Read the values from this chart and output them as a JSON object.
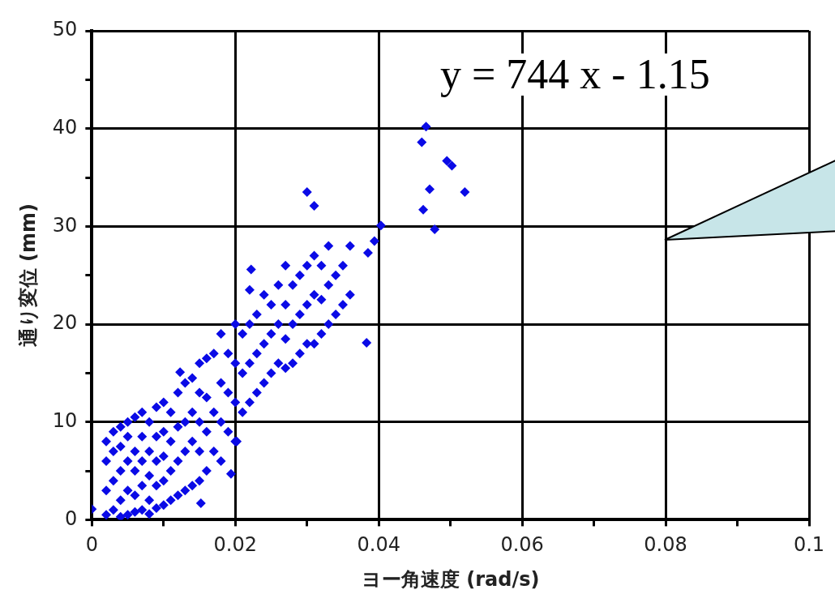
{
  "chart_data": {
    "type": "scatter",
    "xlabel": "ヨー角速度 (rad/s)",
    "ylabel": "通り変位 (mm)",
    "annotations": [
      "y = 744 x - 1.15"
    ],
    "xlim": [
      0,
      0.1
    ],
    "ylim": [
      0,
      50
    ],
    "xticks": [
      0,
      {
        "value": 0.01,
        "label": null
      },
      0.02,
      {
        "value": 0.03,
        "label": null
      },
      0.04,
      {
        "value": 0.05,
        "label": null
      },
      0.06,
      {
        "value": 0.07,
        "label": null
      },
      0.08,
      {
        "value": 0.09,
        "label": null
      },
      0.1
    ],
    "yticks": [
      0,
      {
        "value": 5,
        "label": null
      },
      10,
      {
        "value": 15,
        "label": null
      },
      20,
      {
        "value": 25,
        "label": null
      },
      30,
      {
        "value": 35,
        "label": null
      },
      40,
      {
        "value": 45,
        "label": null
      },
      50
    ],
    "grid": true,
    "legend": false,
    "marker": "diamond",
    "series": [
      {
        "color": "#0a0ae6",
        "x": [
          0,
          0.002,
          0.002,
          0.002,
          0.002,
          0.003,
          0.003,
          0.003,
          0.003,
          0.004,
          0.004,
          0.004,
          0.004,
          0.004,
          0.005,
          0.005,
          0.005,
          0.005,
          0.005,
          0.006,
          0.006,
          0.006,
          0.006,
          0.006,
          0.007,
          0.007,
          0.007,
          0.007,
          0.007,
          0.008,
          0.008,
          0.008,
          0.008,
          0.008,
          0.009,
          0.009,
          0.009,
          0.009,
          0.009,
          0.01,
          0.01,
          0.01,
          0.01,
          0.01,
          0.011,
          0.011,
          0.011,
          0.011,
          0.012,
          0.012,
          0.012,
          0.012,
          0.013,
          0.013,
          0.013,
          0.013,
          0.014,
          0.014,
          0.014,
          0.014,
          0.015,
          0.015,
          0.015,
          0.015,
          0.015,
          0.016,
          0.016,
          0.016,
          0.016,
          0.017,
          0.017,
          0.017,
          0.018,
          0.018,
          0.018,
          0.018,
          0.019,
          0.019,
          0.019,
          0.02,
          0.02,
          0.02,
          0.02,
          0.021,
          0.021,
          0.021,
          0.022,
          0.022,
          0.022,
          0.022,
          0.023,
          0.023,
          0.023,
          0.024,
          0.024,
          0.024,
          0.025,
          0.025,
          0.025,
          0.026,
          0.026,
          0.026,
          0.027,
          0.027,
          0.027,
          0.027,
          0.028,
          0.028,
          0.028,
          0.029,
          0.029,
          0.029,
          0.03,
          0.03,
          0.03,
          0.031,
          0.031,
          0.031,
          0.032,
          0.032,
          0.032,
          0.033,
          0.033,
          0.033,
          0.034,
          0.034,
          0.035,
          0.035,
          0.036,
          0.036,
          0.03,
          0.031,
          0.0385,
          0.0394,
          0.0403,
          0.0383,
          0.046,
          0.0466,
          0.0495,
          0.0502,
          0.0471,
          0.052,
          0.0462,
          0.0478,
          0.0222,
          0.0123,
          0.0152,
          0.0194,
          0.0202
        ],
        "values": [
          1.1,
          0.5,
          3,
          6,
          8,
          1,
          4,
          7,
          9,
          0.3,
          2,
          5,
          7.5,
          9.5,
          0.5,
          3,
          6,
          8.5,
          10,
          0.8,
          2.5,
          5,
          7,
          10.5,
          1,
          3.5,
          6,
          8.5,
          11,
          0.6,
          2,
          4.5,
          7,
          10,
          1.2,
          3.5,
          6,
          8.5,
          11.5,
          1.5,
          4,
          6.5,
          9,
          12,
          2,
          5,
          8,
          11,
          2.5,
          6,
          9.5,
          13,
          3,
          7,
          10,
          14,
          3.5,
          8,
          11,
          14.5,
          4,
          7,
          10,
          13,
          16,
          5,
          9,
          12.5,
          16.5,
          7,
          11,
          17,
          6,
          10,
          14,
          19,
          9,
          13,
          17,
          8,
          12,
          16,
          20,
          11,
          15,
          19,
          12,
          16,
          20,
          23.5,
          13,
          17,
          21,
          14,
          18,
          23,
          15,
          19,
          22,
          16,
          20,
          24,
          15.5,
          18.5,
          22,
          26,
          16,
          20,
          24,
          17,
          21,
          25,
          18,
          22,
          26,
          18,
          23,
          27,
          19,
          22.5,
          26,
          20,
          24,
          28,
          21,
          25,
          22,
          26,
          23,
          28,
          33.5,
          32.1,
          27.3,
          28.5,
          30.1,
          18.1,
          38.6,
          40.2,
          36.7,
          36.2,
          33.8,
          33.5,
          31.7,
          29.7,
          25.6,
          15.1,
          1.7,
          4.7,
          8
        ]
      }
    ]
  }
}
